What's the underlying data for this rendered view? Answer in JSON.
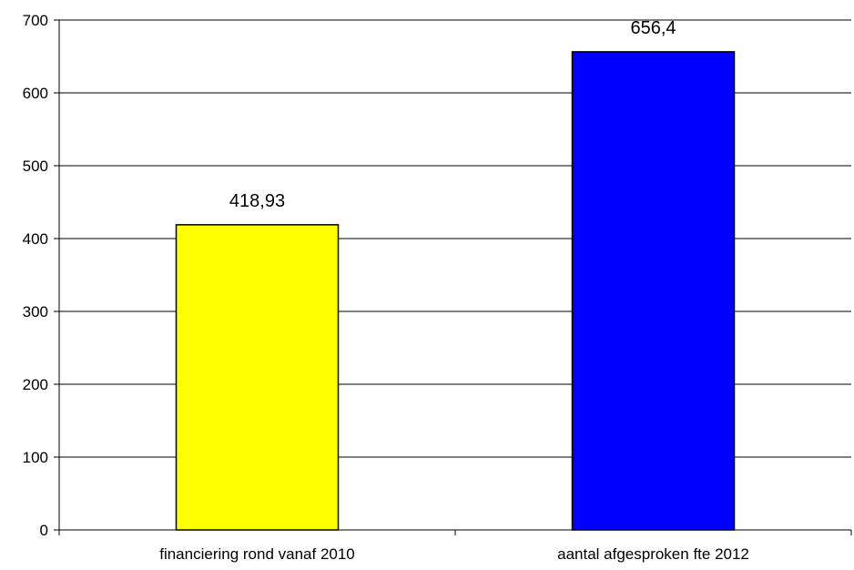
{
  "chart_data": {
    "type": "bar",
    "categories": [
      "financiering rond vanaf 2010",
      "aantal afgesproken fte 2012"
    ],
    "values": [
      418.93,
      656.4
    ],
    "data_labels": [
      "418,93",
      "656,4"
    ],
    "bar_colors": [
      "#FFFF00",
      "#0000FF"
    ],
    "title": "",
    "xlabel": "",
    "ylabel": "",
    "ylim": [
      0,
      700
    ],
    "yticks": [
      0,
      100,
      200,
      300,
      400,
      500,
      600,
      700
    ],
    "grid": true,
    "legend": "none"
  }
}
